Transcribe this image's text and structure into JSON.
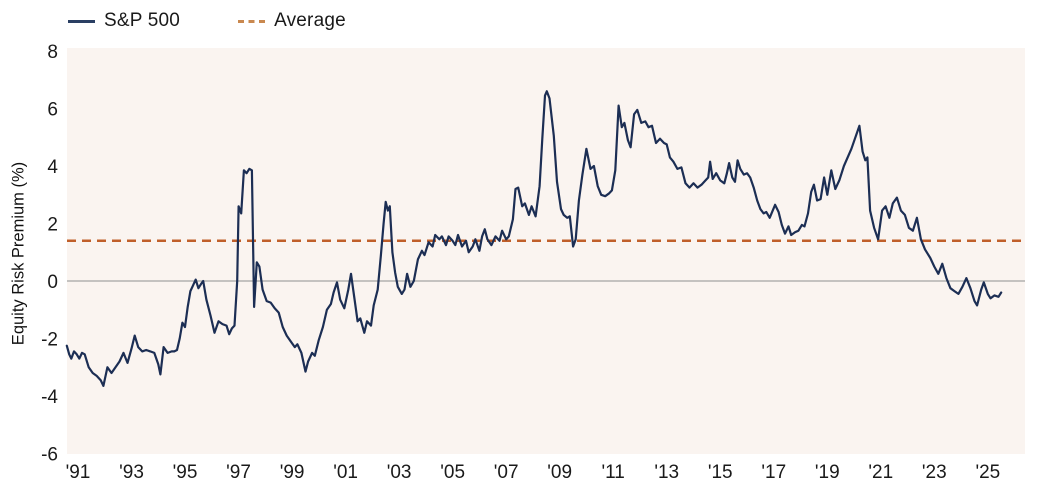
{
  "legend": {
    "series_label": "S&P 500",
    "average_label": "Average"
  },
  "y_axis_title": "Equity Risk Premium (%)",
  "colors": {
    "series_line": "#1c2e54",
    "average_line": "#c05f2a",
    "legend_average_swatch": "#c9884f",
    "plot_background": "#faf4f0",
    "zero_line": "#a3a3a3",
    "text": "#1a1a1a"
  },
  "chart_data": {
    "type": "line",
    "title": "",
    "xlabel": "",
    "ylabel": "Equity Risk Premium (%)",
    "ylim": [
      -6,
      8
    ],
    "y_ticks": [
      8,
      6,
      4,
      2,
      0,
      -2,
      -4,
      -6
    ],
    "x_tick_years": [
      1991,
      1993,
      1995,
      1997,
      1999,
      2001,
      2003,
      2005,
      2007,
      2009,
      2011,
      2013,
      2015,
      2017,
      2019,
      2021,
      2023,
      2025
    ],
    "x_tick_labels": [
      "'91",
      "'93",
      "'95",
      "'97",
      "'99",
      "'01",
      "'03",
      "'05",
      "'07",
      "'09",
      "'11",
      "'13",
      "'15",
      "'17",
      "'19",
      "'21",
      "'23",
      "'25"
    ],
    "grid": "zero-line-only",
    "legend_position": "top-left",
    "average_value": 1.4,
    "series": [
      {
        "name": "S&P 500",
        "points": [
          [
            1990.58,
            -2.25
          ],
          [
            1990.67,
            -2.55
          ],
          [
            1990.75,
            -2.7
          ],
          [
            1990.85,
            -2.45
          ],
          [
            1990.95,
            -2.55
          ],
          [
            1991.05,
            -2.7
          ],
          [
            1991.15,
            -2.5
          ],
          [
            1991.25,
            -2.55
          ],
          [
            1991.4,
            -3.0
          ],
          [
            1991.55,
            -3.2
          ],
          [
            1991.7,
            -3.3
          ],
          [
            1991.85,
            -3.45
          ],
          [
            1991.95,
            -3.65
          ],
          [
            1992.1,
            -3.0
          ],
          [
            1992.25,
            -3.2
          ],
          [
            1992.4,
            -3.0
          ],
          [
            1992.55,
            -2.8
          ],
          [
            1992.7,
            -2.5
          ],
          [
            1992.85,
            -2.85
          ],
          [
            1993.0,
            -2.35
          ],
          [
            1993.12,
            -1.9
          ],
          [
            1993.25,
            -2.3
          ],
          [
            1993.4,
            -2.45
          ],
          [
            1993.55,
            -2.4
          ],
          [
            1993.7,
            -2.45
          ],
          [
            1993.85,
            -2.5
          ],
          [
            1994.0,
            -2.9
          ],
          [
            1994.08,
            -3.25
          ],
          [
            1994.2,
            -2.3
          ],
          [
            1994.35,
            -2.5
          ],
          [
            1994.5,
            -2.45
          ],
          [
            1994.6,
            -2.45
          ],
          [
            1994.7,
            -2.4
          ],
          [
            1994.8,
            -2.0
          ],
          [
            1994.9,
            -1.45
          ],
          [
            1995.0,
            -1.6
          ],
          [
            1995.1,
            -0.9
          ],
          [
            1995.2,
            -0.35
          ],
          [
            1995.3,
            -0.15
          ],
          [
            1995.4,
            0.05
          ],
          [
            1995.5,
            -0.25
          ],
          [
            1995.6,
            -0.1
          ],
          [
            1995.68,
            0.0
          ],
          [
            1995.8,
            -0.65
          ],
          [
            1995.95,
            -1.2
          ],
          [
            1996.1,
            -1.8
          ],
          [
            1996.25,
            -1.4
          ],
          [
            1996.4,
            -1.5
          ],
          [
            1996.55,
            -1.55
          ],
          [
            1996.65,
            -1.85
          ],
          [
            1996.75,
            -1.65
          ],
          [
            1996.85,
            -1.55
          ],
          [
            1996.95,
            0.0
          ],
          [
            1997.0,
            2.6
          ],
          [
            1997.1,
            2.35
          ],
          [
            1997.2,
            3.85
          ],
          [
            1997.3,
            3.75
          ],
          [
            1997.4,
            3.9
          ],
          [
            1997.5,
            3.85
          ],
          [
            1997.58,
            -0.9
          ],
          [
            1997.68,
            0.65
          ],
          [
            1997.78,
            0.5
          ],
          [
            1997.9,
            -0.3
          ],
          [
            1998.05,
            -0.7
          ],
          [
            1998.2,
            -0.75
          ],
          [
            1998.35,
            -0.95
          ],
          [
            1998.5,
            -1.1
          ],
          [
            1998.65,
            -1.6
          ],
          [
            1998.8,
            -1.9
          ],
          [
            1998.95,
            -2.1
          ],
          [
            1999.1,
            -2.3
          ],
          [
            1999.2,
            -2.2
          ],
          [
            1999.35,
            -2.5
          ],
          [
            1999.5,
            -3.15
          ],
          [
            1999.6,
            -2.8
          ],
          [
            1999.75,
            -2.5
          ],
          [
            1999.85,
            -2.6
          ],
          [
            2000.0,
            -2.05
          ],
          [
            2000.15,
            -1.6
          ],
          [
            2000.3,
            -1.0
          ],
          [
            2000.45,
            -0.8
          ],
          [
            2000.55,
            -0.4
          ],
          [
            2000.68,
            -0.05
          ],
          [
            2000.8,
            -0.65
          ],
          [
            2000.95,
            -0.95
          ],
          [
            2001.1,
            -0.3
          ],
          [
            2001.2,
            0.25
          ],
          [
            2001.32,
            -0.55
          ],
          [
            2001.45,
            -1.4
          ],
          [
            2001.55,
            -1.3
          ],
          [
            2001.7,
            -1.8
          ],
          [
            2001.8,
            -1.4
          ],
          [
            2001.95,
            -1.55
          ],
          [
            2002.05,
            -0.85
          ],
          [
            2002.2,
            -0.3
          ],
          [
            2002.32,
            0.9
          ],
          [
            2002.42,
            2.0
          ],
          [
            2002.5,
            2.75
          ],
          [
            2002.58,
            2.45
          ],
          [
            2002.65,
            2.6
          ],
          [
            2002.75,
            1.0
          ],
          [
            2002.85,
            0.3
          ],
          [
            2002.95,
            -0.2
          ],
          [
            2003.1,
            -0.45
          ],
          [
            2003.2,
            -0.3
          ],
          [
            2003.3,
            0.25
          ],
          [
            2003.42,
            -0.2
          ],
          [
            2003.55,
            0.0
          ],
          [
            2003.7,
            0.75
          ],
          [
            2003.85,
            1.05
          ],
          [
            2003.95,
            0.9
          ],
          [
            2004.1,
            1.35
          ],
          [
            2004.25,
            1.2
          ],
          [
            2004.35,
            1.6
          ],
          [
            2004.5,
            1.45
          ],
          [
            2004.6,
            1.55
          ],
          [
            2004.75,
            1.25
          ],
          [
            2004.85,
            1.55
          ],
          [
            2005.0,
            1.4
          ],
          [
            2005.1,
            1.25
          ],
          [
            2005.2,
            1.6
          ],
          [
            2005.35,
            1.2
          ],
          [
            2005.5,
            1.4
          ],
          [
            2005.6,
            1.0
          ],
          [
            2005.75,
            1.2
          ],
          [
            2005.85,
            1.45
          ],
          [
            2006.0,
            1.05
          ],
          [
            2006.1,
            1.55
          ],
          [
            2006.2,
            1.8
          ],
          [
            2006.3,
            1.45
          ],
          [
            2006.45,
            1.25
          ],
          [
            2006.6,
            1.55
          ],
          [
            2006.75,
            1.4
          ],
          [
            2006.85,
            1.75
          ],
          [
            2007.0,
            1.45
          ],
          [
            2007.1,
            1.55
          ],
          [
            2007.25,
            2.15
          ],
          [
            2007.35,
            3.2
          ],
          [
            2007.45,
            3.25
          ],
          [
            2007.6,
            2.6
          ],
          [
            2007.7,
            2.7
          ],
          [
            2007.85,
            2.3
          ],
          [
            2007.95,
            2.6
          ],
          [
            2008.1,
            2.25
          ],
          [
            2008.25,
            3.3
          ],
          [
            2008.35,
            4.95
          ],
          [
            2008.45,
            6.45
          ],
          [
            2008.52,
            6.6
          ],
          [
            2008.62,
            6.35
          ],
          [
            2008.78,
            5.05
          ],
          [
            2008.9,
            3.45
          ],
          [
            2009.05,
            2.5
          ],
          [
            2009.15,
            2.3
          ],
          [
            2009.28,
            2.2
          ],
          [
            2009.38,
            2.25
          ],
          [
            2009.5,
            1.2
          ],
          [
            2009.6,
            1.45
          ],
          [
            2009.72,
            2.8
          ],
          [
            2009.85,
            3.7
          ],
          [
            2010.0,
            4.6
          ],
          [
            2010.15,
            3.9
          ],
          [
            2010.28,
            4.0
          ],
          [
            2010.42,
            3.3
          ],
          [
            2010.55,
            3.0
          ],
          [
            2010.7,
            2.95
          ],
          [
            2010.85,
            3.05
          ],
          [
            2010.95,
            3.15
          ],
          [
            2011.08,
            3.85
          ],
          [
            2011.2,
            6.1
          ],
          [
            2011.32,
            5.35
          ],
          [
            2011.42,
            5.5
          ],
          [
            2011.55,
            4.9
          ],
          [
            2011.65,
            4.65
          ],
          [
            2011.78,
            5.8
          ],
          [
            2011.9,
            5.95
          ],
          [
            2012.05,
            5.5
          ],
          [
            2012.2,
            5.55
          ],
          [
            2012.32,
            5.35
          ],
          [
            2012.45,
            5.4
          ],
          [
            2012.6,
            4.8
          ],
          [
            2012.75,
            4.95
          ],
          [
            2012.9,
            4.8
          ],
          [
            2013.0,
            4.75
          ],
          [
            2013.12,
            4.3
          ],
          [
            2013.25,
            4.15
          ],
          [
            2013.4,
            3.9
          ],
          [
            2013.55,
            3.95
          ],
          [
            2013.7,
            3.4
          ],
          [
            2013.85,
            3.25
          ],
          [
            2014.0,
            3.4
          ],
          [
            2014.15,
            3.25
          ],
          [
            2014.3,
            3.35
          ],
          [
            2014.45,
            3.5
          ],
          [
            2014.55,
            3.6
          ],
          [
            2014.62,
            4.15
          ],
          [
            2014.72,
            3.55
          ],
          [
            2014.85,
            3.75
          ],
          [
            2015.0,
            3.5
          ],
          [
            2015.15,
            3.4
          ],
          [
            2015.25,
            3.75
          ],
          [
            2015.33,
            4.1
          ],
          [
            2015.45,
            3.6
          ],
          [
            2015.55,
            3.45
          ],
          [
            2015.65,
            4.2
          ],
          [
            2015.75,
            3.9
          ],
          [
            2015.88,
            3.7
          ],
          [
            2016.0,
            3.75
          ],
          [
            2016.12,
            3.6
          ],
          [
            2016.25,
            3.25
          ],
          [
            2016.38,
            2.8
          ],
          [
            2016.5,
            2.5
          ],
          [
            2016.62,
            2.35
          ],
          [
            2016.72,
            2.4
          ],
          [
            2016.85,
            2.2
          ],
          [
            2017.05,
            2.65
          ],
          [
            2017.18,
            2.4
          ],
          [
            2017.3,
            1.95
          ],
          [
            2017.42,
            1.65
          ],
          [
            2017.55,
            1.9
          ],
          [
            2017.65,
            1.6
          ],
          [
            2017.8,
            1.7
          ],
          [
            2017.92,
            1.75
          ],
          [
            2018.05,
            1.95
          ],
          [
            2018.15,
            1.9
          ],
          [
            2018.28,
            2.35
          ],
          [
            2018.4,
            3.1
          ],
          [
            2018.5,
            3.35
          ],
          [
            2018.62,
            2.8
          ],
          [
            2018.75,
            2.85
          ],
          [
            2018.88,
            3.6
          ],
          [
            2019.0,
            3.0
          ],
          [
            2019.15,
            3.85
          ],
          [
            2019.3,
            3.2
          ],
          [
            2019.45,
            3.5
          ],
          [
            2019.62,
            4.0
          ],
          [
            2019.9,
            4.6
          ],
          [
            2020.2,
            5.4
          ],
          [
            2020.32,
            4.5
          ],
          [
            2020.42,
            4.2
          ],
          [
            2020.5,
            4.3
          ],
          [
            2020.6,
            2.45
          ],
          [
            2020.75,
            1.85
          ],
          [
            2020.9,
            1.45
          ],
          [
            2021.05,
            2.45
          ],
          [
            2021.18,
            2.6
          ],
          [
            2021.32,
            2.2
          ],
          [
            2021.45,
            2.7
          ],
          [
            2021.6,
            2.9
          ],
          [
            2021.75,
            2.45
          ],
          [
            2021.9,
            2.3
          ],
          [
            2022.05,
            1.85
          ],
          [
            2022.2,
            1.75
          ],
          [
            2022.35,
            2.2
          ],
          [
            2022.5,
            1.45
          ],
          [
            2022.65,
            1.1
          ],
          [
            2022.85,
            0.8
          ],
          [
            2023.0,
            0.5
          ],
          [
            2023.15,
            0.25
          ],
          [
            2023.3,
            0.6
          ],
          [
            2023.45,
            0.1
          ],
          [
            2023.6,
            -0.25
          ],
          [
            2023.75,
            -0.35
          ],
          [
            2023.9,
            -0.45
          ],
          [
            2024.05,
            -0.2
          ],
          [
            2024.2,
            0.1
          ],
          [
            2024.35,
            -0.25
          ],
          [
            2024.5,
            -0.7
          ],
          [
            2024.6,
            -0.85
          ],
          [
            2024.75,
            -0.3
          ],
          [
            2024.85,
            -0.05
          ],
          [
            2025.0,
            -0.45
          ],
          [
            2025.1,
            -0.6
          ],
          [
            2025.25,
            -0.5
          ],
          [
            2025.4,
            -0.55
          ],
          [
            2025.5,
            -0.4
          ]
        ]
      }
    ]
  }
}
